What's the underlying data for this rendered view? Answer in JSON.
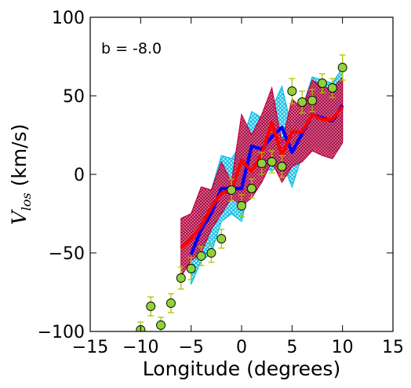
{
  "chart_data": {
    "type": "line",
    "xlabel": "Longitude (degrees)",
    "ylabel": {
      "symbol": "V",
      "subscript": "los",
      "units": " (km/s)"
    },
    "annotation": "b = -8.0",
    "xlim": [
      -15,
      15
    ],
    "ylim": [
      -100,
      100
    ],
    "xticks": [
      -15,
      -10,
      -5,
      0,
      5,
      10,
      15
    ],
    "yticks": [
      -100,
      -50,
      0,
      50,
      100
    ],
    "x_tick_labels": [
      "−15",
      "−10",
      "−5",
      "0",
      "5",
      "10",
      "15"
    ],
    "y_tick_labels": [
      "−100",
      "−50",
      "0",
      "50",
      "100"
    ],
    "grid": false,
    "colors": {
      "blue_line": "#0000ff",
      "cyan_band": "#00c0e8",
      "red_line": "#ff0000",
      "crimson_band": "#c0003c",
      "points_fill": "#8fd23a",
      "points_error": "#a8c800"
    },
    "series": [
      {
        "style": "band",
        "color": "#00c0e8",
        "x": [
          -5,
          -4,
          -3,
          -2,
          -1,
          0,
          1,
          2,
          3,
          4,
          5,
          6,
          7,
          8,
          9,
          10
        ],
        "upper": [
          -37,
          -15,
          -10,
          12,
          10,
          20,
          40,
          36,
          42,
          56,
          28,
          42,
          62,
          60,
          58,
          68
        ],
        "lower": [
          -70,
          -55,
          -50,
          -30,
          -25,
          -30,
          -2,
          5,
          2,
          8,
          -8,
          12,
          18,
          18,
          14,
          22
        ]
      },
      {
        "style": "band",
        "color": "#c0003c",
        "x": [
          -6,
          -5,
          -4,
          -3,
          -2,
          -1,
          0,
          1,
          2,
          3,
          4,
          5,
          6,
          7,
          8,
          9,
          10
        ],
        "upper": [
          -28,
          -25,
          -8,
          -10,
          8,
          -5,
          38,
          25,
          38,
          55,
          20,
          48,
          42,
          60,
          56,
          54,
          62
        ],
        "lower": [
          -65,
          -55,
          -50,
          -35,
          -25,
          -15,
          -20,
          -15,
          -5,
          8,
          -5,
          5,
          8,
          15,
          12,
          10,
          20
        ]
      },
      {
        "style": "line",
        "color": "#0000ff",
        "x": [
          -5,
          -4,
          -3,
          -2,
          -1,
          0,
          1,
          2,
          3,
          4,
          5,
          6,
          7,
          8,
          9,
          10
        ],
        "values": [
          -51,
          -35,
          -25,
          -9,
          -9,
          -9,
          18,
          16,
          24,
          30,
          14,
          26,
          38,
          36,
          34,
          44
        ]
      },
      {
        "style": "line",
        "color": "#ff0000",
        "x": [
          -6,
          -5,
          -4,
          -3,
          -2,
          -1,
          0,
          1,
          2,
          3,
          4,
          5,
          6,
          7,
          8,
          9,
          10
        ],
        "values": [
          -47,
          -41,
          -33,
          -21,
          -12,
          -10,
          9,
          2,
          13,
          33,
          12,
          27,
          27,
          38,
          35,
          35,
          43
        ]
      },
      {
        "style": "points",
        "color": "#8fd23a",
        "x": [
          -10,
          -9,
          -8,
          -7,
          -6,
          -5,
          -4,
          -3,
          -2,
          -1,
          0,
          1,
          2,
          3,
          4,
          5,
          6,
          7,
          8,
          9,
          10
        ],
        "values": [
          -99,
          -84,
          -96,
          -82,
          -66,
          -60,
          -52,
          -50,
          -41,
          -10,
          -20,
          -9,
          7,
          8,
          5,
          53,
          46,
          47,
          58,
          55,
          68
        ],
        "error": [
          5,
          6,
          5,
          6,
          7,
          7,
          6,
          6,
          6,
          7,
          7,
          6,
          7,
          7,
          7,
          8,
          7,
          7,
          6,
          6,
          8
        ]
      }
    ]
  }
}
